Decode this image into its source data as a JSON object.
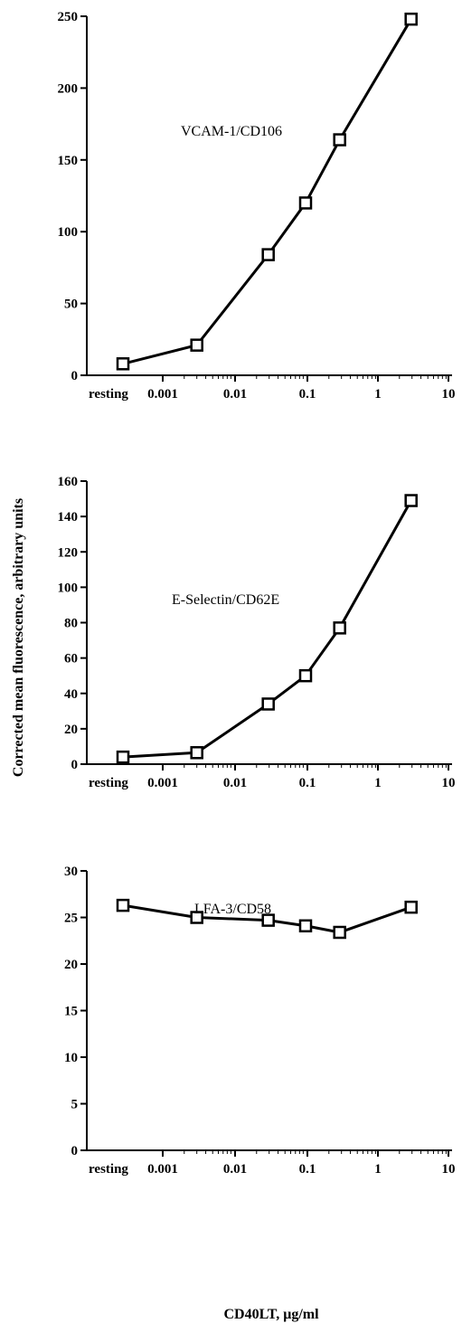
{
  "figure": {
    "ylabel": "Corrected mean fluorescence, arbitrary units",
    "xlabel": "CD40LT, μg/ml"
  },
  "chart_data": [
    {
      "type": "line",
      "xscale": "log",
      "x_ticks": [
        "resting",
        "0.001",
        "0.01",
        "0.1",
        "1",
        "10"
      ],
      "y_ticks": [
        "0",
        "50",
        "100",
        "150",
        "200",
        "250"
      ],
      "ylim": [
        0,
        250
      ],
      "series": [
        {
          "name": "VCAM-1/CD106",
          "x": [
            "resting",
            0.003,
            0.03,
            0.1,
            0.3,
            3
          ],
          "values": [
            8,
            21,
            84,
            120,
            164,
            248
          ]
        }
      ],
      "marker": "open-square",
      "grid": false
    },
    {
      "type": "line",
      "xscale": "log",
      "x_ticks": [
        "resting",
        "0.001",
        "0.01",
        "0.1",
        "1",
        "10"
      ],
      "y_ticks": [
        "0",
        "20",
        "40",
        "60",
        "80",
        "100",
        "120",
        "140",
        "160"
      ],
      "ylim": [
        0,
        160
      ],
      "series": [
        {
          "name": "E-Selectin/CD62E",
          "x": [
            "resting",
            0.003,
            0.03,
            0.1,
            0.3,
            3
          ],
          "values": [
            4,
            6.5,
            34,
            50,
            77,
            149
          ]
        }
      ],
      "marker": "open-square",
      "grid": false
    },
    {
      "type": "line",
      "xscale": "log",
      "x_ticks": [
        "resting",
        "0.001",
        "0.01",
        "0.1",
        "1",
        "10"
      ],
      "y_ticks": [
        "0",
        "5",
        "10",
        "15",
        "20",
        "25",
        "30"
      ],
      "ylim": [
        0,
        30
      ],
      "series": [
        {
          "name": "LFA-3/CD58",
          "x": [
            "resting",
            0.003,
            0.03,
            0.1,
            0.3,
            3
          ],
          "values": [
            26.3,
            25,
            24.7,
            24.1,
            23.4,
            26.1
          ]
        }
      ],
      "marker": "open-square",
      "grid": false
    }
  ]
}
